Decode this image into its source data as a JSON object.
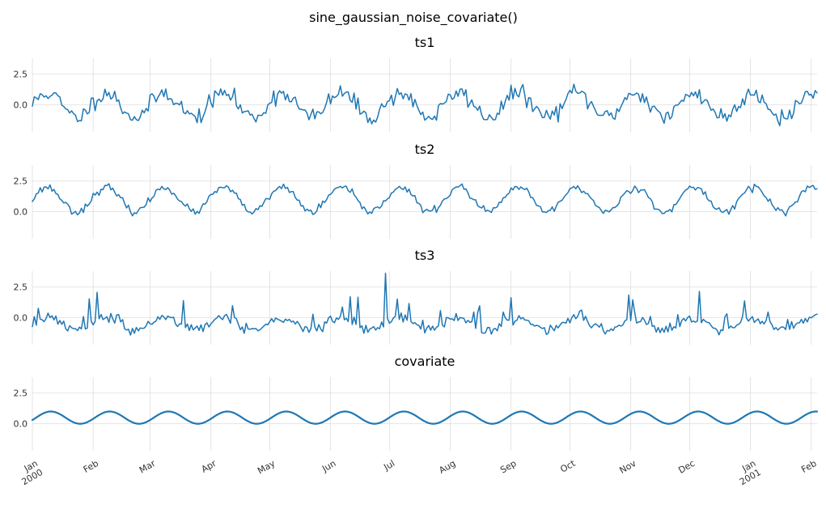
{
  "chart_data": {
    "type": "line",
    "title": "sine_gaussian_noise_covariate()",
    "x_range": [
      "2000-01-01",
      "2001-02-04"
    ],
    "x_tick_labels": [
      "Jan\n2000",
      "Feb",
      "Mar",
      "Apr",
      "May",
      "Jun",
      "Jul",
      "Aug",
      "Sep",
      "Oct",
      "Nov",
      "Dec",
      "Jan\n2001",
      "Feb"
    ],
    "x_tick_dates": [
      "2000-01-01",
      "2000-02-01",
      "2000-03-01",
      "2000-04-01",
      "2000-05-01",
      "2000-06-01",
      "2000-07-01",
      "2000-08-01",
      "2000-09-01",
      "2000-10-01",
      "2000-11-01",
      "2000-12-01",
      "2001-01-01",
      "2001-02-01"
    ],
    "y_tick_labels": [
      "2.5",
      "0.0"
    ],
    "y_ticks": [
      2.5,
      0.0
    ],
    "ylim": [
      -2.2,
      3.8
    ],
    "grid": true,
    "color": "#1f77b4",
    "series_model": {
      "sine_period_days": 30,
      "sine_amplitude": 1.0,
      "sine_offset": 0.0,
      "covariate_offset": 0.5,
      "covariate_amplitude": 0.5
    },
    "panels": [
      {
        "title": "ts1",
        "kind": "noise",
        "offset": 0.0,
        "amp": 1.0,
        "noise": 0.35,
        "seed": 11
      },
      {
        "title": "ts2",
        "kind": "noise",
        "offset": 1.0,
        "amp": 1.0,
        "noise": 0.15,
        "seed": 23
      },
      {
        "title": "ts3",
        "kind": "spiky",
        "offset": -0.5,
        "amp": 0.5,
        "noise": 0.2,
        "seed": 37
      },
      {
        "title": "covariate",
        "kind": "smooth",
        "offset": 0.5,
        "amp": 0.5,
        "noise": 0.0,
        "seed": 0
      }
    ]
  }
}
